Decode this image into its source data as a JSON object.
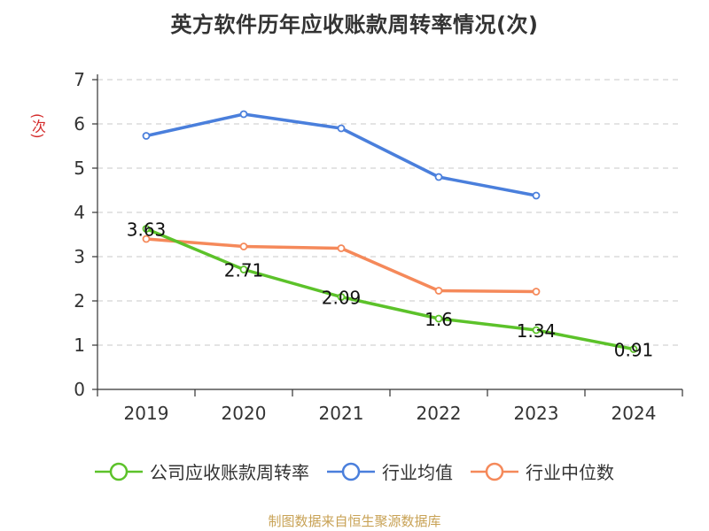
{
  "title": "英方软件历年应收账款周转率情况(次)",
  "source": "制图数据来自恒生聚源数据库",
  "chart_data": {
    "type": "line",
    "categories": [
      "2019",
      "2020",
      "2021",
      "2022",
      "2023",
      "2024"
    ],
    "ylabel": "(次)",
    "xlabel": "",
    "ylim": [
      0,
      7
    ],
    "yticks": [
      0,
      1,
      2,
      3,
      4,
      5,
      6,
      7
    ],
    "grid": true,
    "legend_position": "bottom",
    "series": [
      {
        "name": "公司应收账款周转率",
        "color": "#5cc22a",
        "values": [
          3.63,
          2.71,
          2.09,
          1.6,
          1.34,
          0.91
        ],
        "labels": [
          "3.63",
          "2.71",
          "2.09",
          "1.6",
          "1.34",
          "0.91"
        ]
      },
      {
        "name": "行业均值",
        "color": "#4a7fdc",
        "values": [
          5.73,
          6.22,
          5.9,
          4.8,
          4.38,
          null
        ]
      },
      {
        "name": "行业中位数",
        "color": "#f5895a",
        "values": [
          3.4,
          3.23,
          3.19,
          2.23,
          2.21,
          null
        ]
      }
    ]
  }
}
